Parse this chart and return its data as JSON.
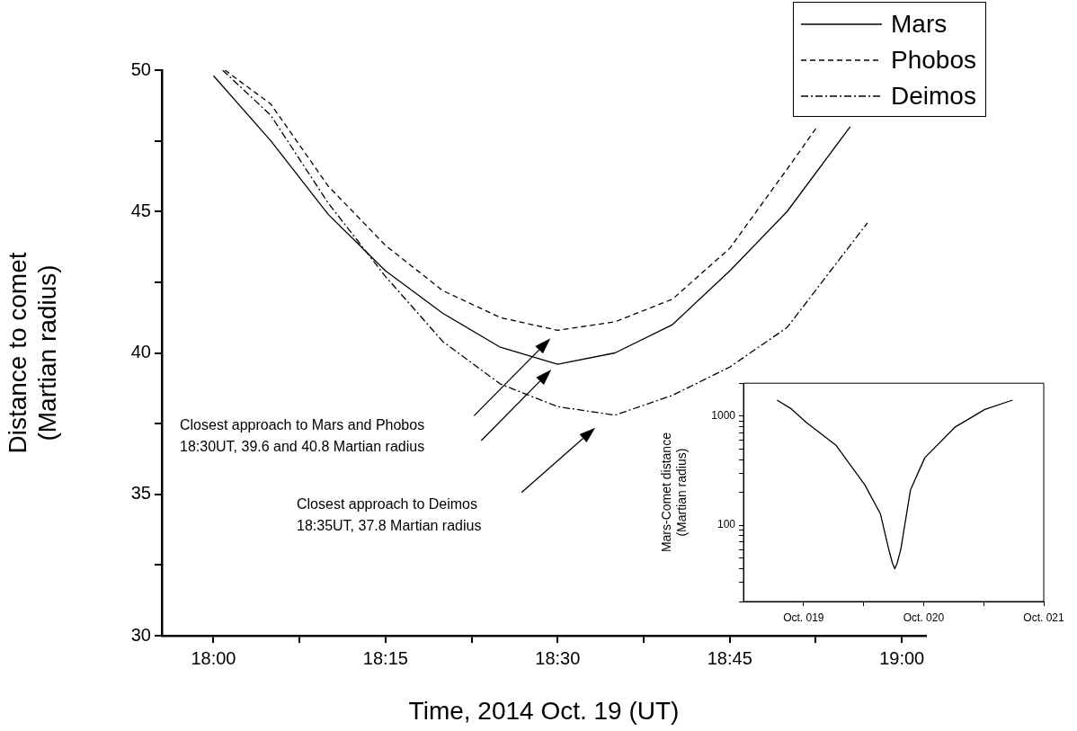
{
  "chart_data": [
    {
      "type": "line",
      "xlabel": "Time, 2014 Oct. 19 (UT)",
      "ylabel": "Distance to comet\n(Martian radius)",
      "xlim": [
        17.925,
        19.035
      ],
      "ylim": [
        30,
        50
      ],
      "xticks": [
        {
          "value": 18,
          "label": "18:00"
        },
        {
          "value": 18.125,
          "label": null
        },
        {
          "value": 18.25,
          "label": "18:15"
        },
        {
          "value": 18.375,
          "label": null
        },
        {
          "value": 18.5,
          "label": "18:30"
        },
        {
          "value": 18.625,
          "label": null
        },
        {
          "value": 18.75,
          "label": "18:45"
        },
        {
          "value": 18.875,
          "label": null
        },
        {
          "value": 19,
          "label": "19:00"
        }
      ],
      "yticks": [
        30,
        {
          "value": 32.5,
          "label": null
        },
        35,
        {
          "value": 37.5,
          "label": null
        },
        40,
        {
          "value": 42.5,
          "label": null
        },
        45,
        {
          "value": 47.5,
          "label": null
        },
        50
      ],
      "grid": false,
      "legend": "top right",
      "marker": "none",
      "series": [
        {
          "name": "Mars",
          "color": "#000000",
          "line_style": "solid",
          "x": [
            18,
            18.0833,
            18.1667,
            18.25,
            18.3333,
            18.4167,
            18.5,
            18.5833,
            18.6667,
            18.75,
            18.8333,
            18.925
          ],
          "values": [
            49.8,
            47.5,
            44.9,
            42.9,
            41.4,
            40.2,
            39.6,
            40.0,
            41.0,
            42.9,
            45.0,
            48.0
          ]
        },
        {
          "name": "Phobos",
          "color": "#000000",
          "line_style": "dashed",
          "x": [
            18.0167,
            18.0833,
            18.1667,
            18.25,
            18.3333,
            18.4167,
            18.5,
            18.5833,
            18.6667,
            18.75,
            18.8333,
            18.877
          ],
          "values": [
            50.0,
            48.8,
            45.9,
            43.8,
            42.2,
            41.25,
            40.8,
            41.1,
            41.9,
            43.7,
            46.5,
            48.0
          ]
        },
        {
          "name": "Deimos",
          "color": "#000000",
          "line_style": "dashdot",
          "x": [
            18.0133,
            18.0833,
            18.1667,
            18.25,
            18.3333,
            18.4167,
            18.5,
            18.5833,
            18.6667,
            18.75,
            18.8333,
            18.95
          ],
          "values": [
            50.0,
            48.4,
            45.3,
            42.7,
            40.4,
            38.9,
            38.1,
            37.8,
            38.5,
            39.5,
            40.9,
            44.6
          ]
        }
      ],
      "annotations": [
        "Closest approach to Mars and Phobos\n18:30UT, 39.6 and 40.8 Martian radius",
        "Closest approach to Deimos\n18:35UT, 37.8 Martian radius"
      ]
    },
    {
      "type": "line",
      "ylabel": "Mars-Comet distance\n(Martian radius)",
      "xlim": [
        "--10-18T12:00",
        "--10-21"
      ],
      "ylim": [
        20,
        2000
      ],
      "log": "y",
      "xticks": [
        {
          "value": "--10-19",
          "label": "Oct. 019"
        },
        {
          "value": "--10-19T12:00",
          "label": null
        },
        {
          "value": "--10-20",
          "label": "Oct. 020"
        },
        {
          "value": "--10-20T12:00",
          "label": null
        },
        {
          "value": "--10-21",
          "label": "Oct. 021"
        }
      ],
      "yticks": [
        {
          "value": 20,
          "label": null
        },
        {
          "value": 30,
          "label": null
        },
        {
          "value": 40,
          "label": null
        },
        {
          "value": 50,
          "label": null
        },
        {
          "value": 60,
          "label": null
        },
        {
          "value": 70,
          "label": null
        },
        {
          "value": 80,
          "label": null
        },
        {
          "value": 90,
          "label": null
        },
        100,
        {
          "value": 200,
          "label": null
        },
        {
          "value": 300,
          "label": null
        },
        {
          "value": 400,
          "label": null
        },
        {
          "value": 500,
          "label": null
        },
        {
          "value": 600,
          "label": null
        },
        {
          "value": 700,
          "label": null
        },
        {
          "value": 800,
          "label": null
        },
        {
          "value": 900,
          "label": null
        },
        1000,
        {
          "value": 2000,
          "label": null
        }
      ],
      "grid": false,
      "marker": "none",
      "series": [
        {
          "color": "#000000",
          "x": [
            "--10-18T18:43",
            "--10-18T21:36",
            "--10-19T00:29",
            "--10-19T06:29",
            "--10-19T12:14",
            "--10-19T15:22",
            "--10-19T17:02",
            "--10-19T17:46",
            "--10-19T18:14",
            "--10-19T18:43",
            "--10-19T19:26",
            "--10-19T21:22",
            "--10-20T00:14",
            "--10-20T06:14",
            "--10-20T12:14",
            "--10-20T17:46"
          ],
          "values": [
            1400,
            1160,
            880,
            540,
            235,
            127,
            60,
            45,
            40,
            45,
            60,
            210,
            415,
            790,
            1150,
            1400
          ]
        }
      ]
    }
  ]
}
